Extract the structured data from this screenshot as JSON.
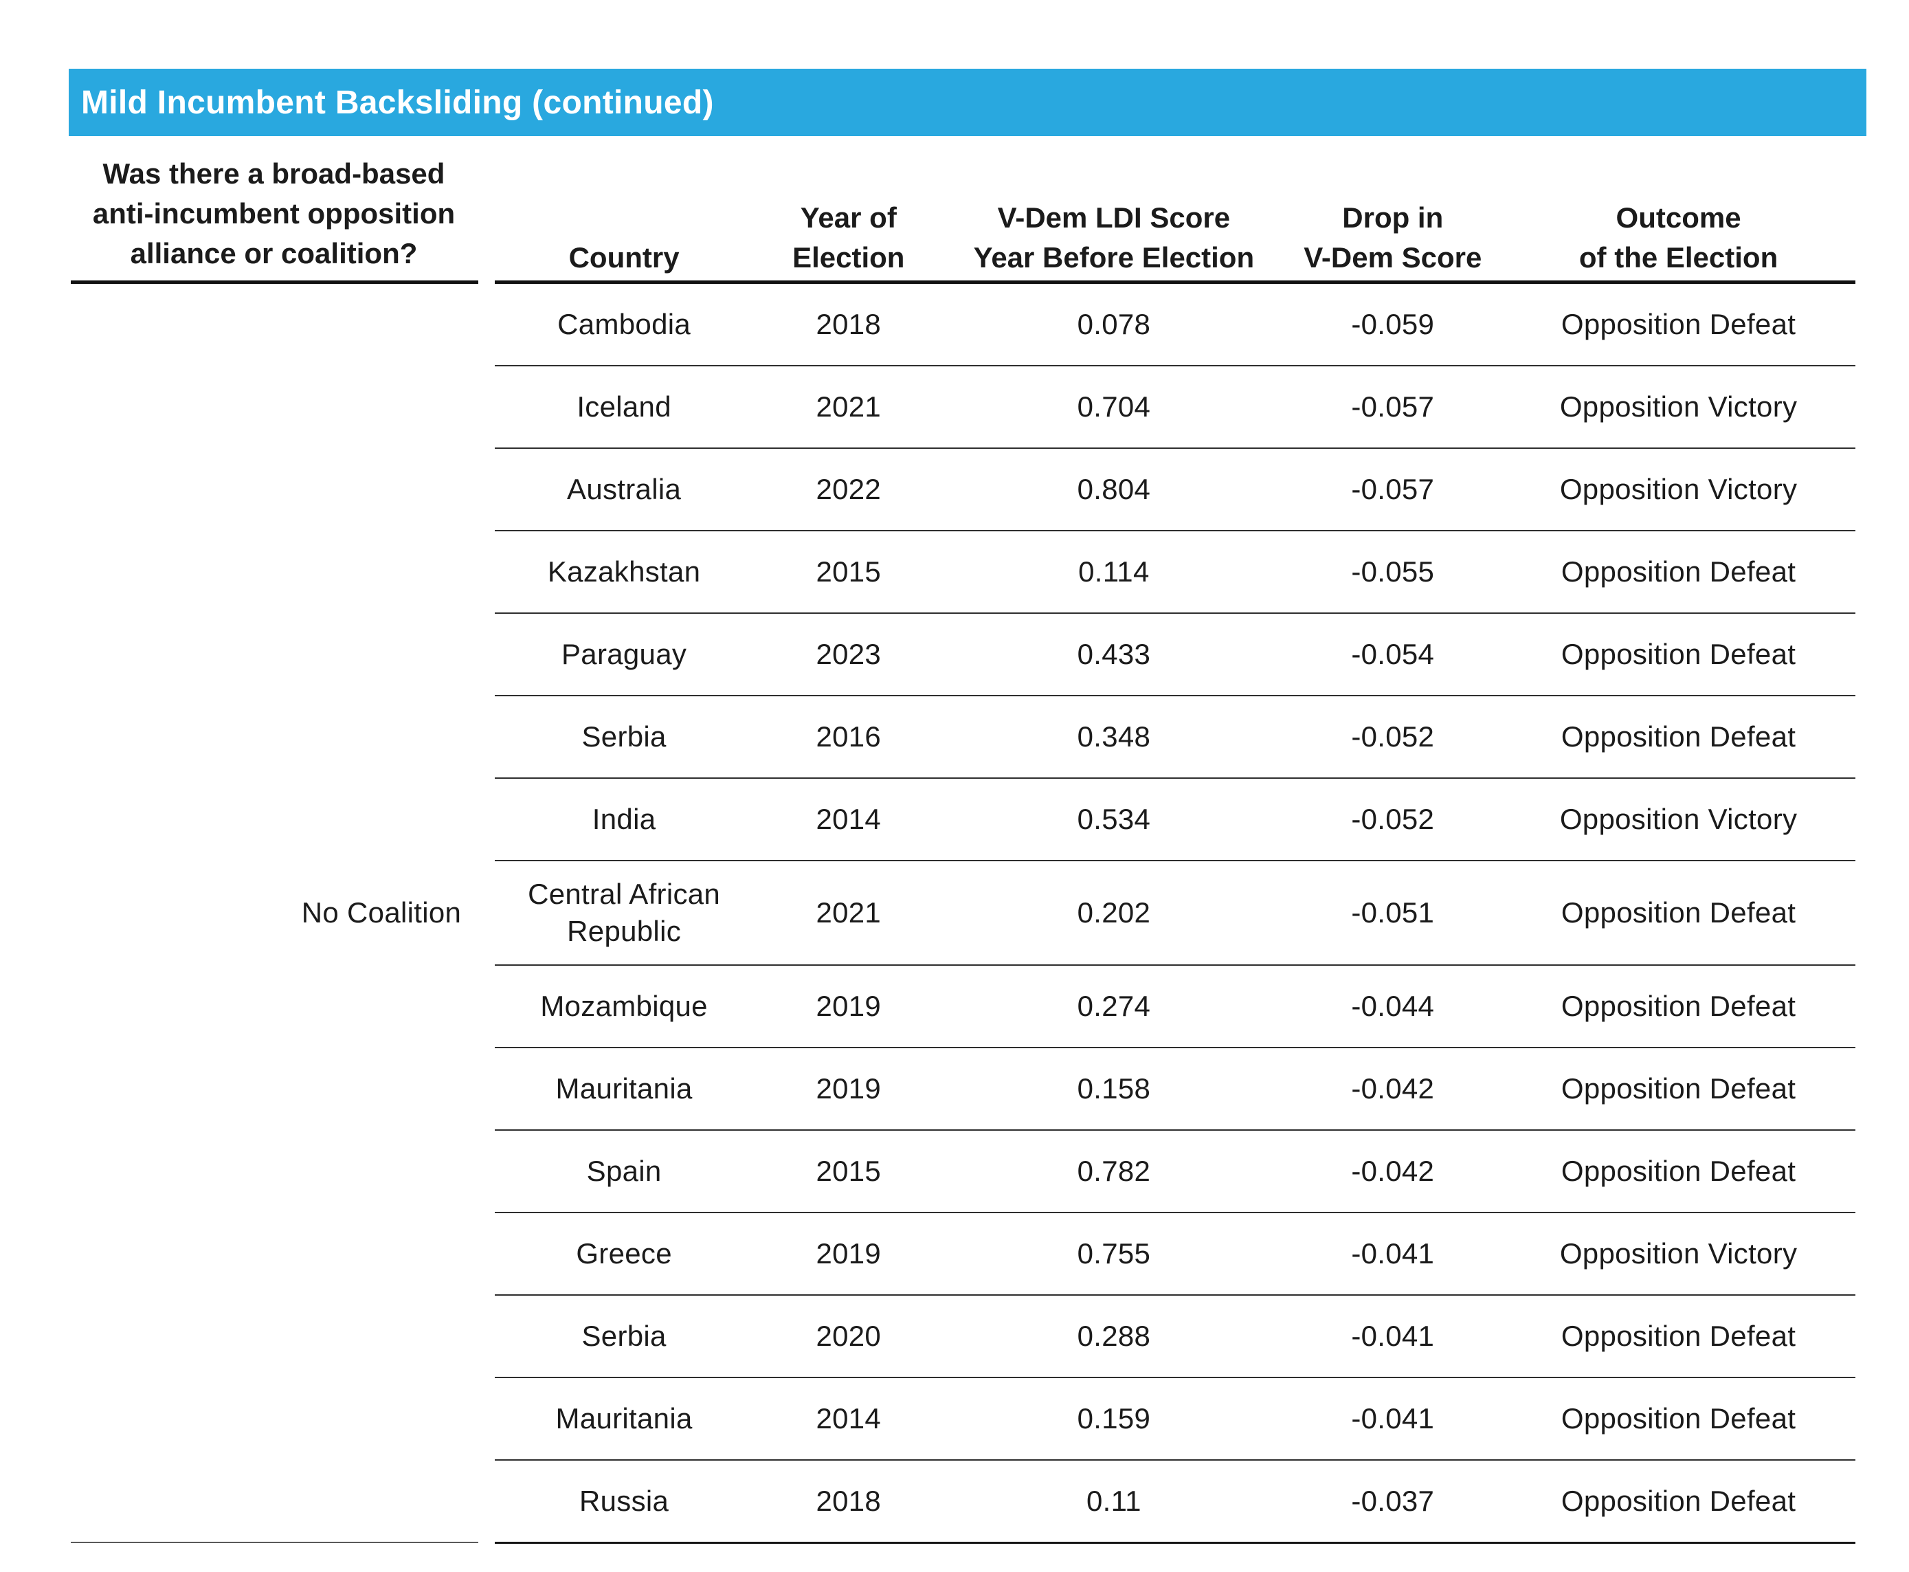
{
  "title_bar": {
    "label": "Mild Incumbent Backsliding (continued)"
  },
  "colors": {
    "header_bar_blue": "#29A8DF",
    "text": "#1B1B1B"
  },
  "left_column": {
    "header": "Was there a broad-based\nanti-incumbent opposition\nalliance or coalition?",
    "group_label": "No Coalition"
  },
  "table": {
    "headers": {
      "country": "Country",
      "year_of_election": "Year of\nElection",
      "vdem_ldi_score": "V-Dem LDI Score\nYear Before Election",
      "drop_in_vdem_score": "Drop in\nV-Dem Score",
      "outcome": "Outcome\nof the Election"
    },
    "rows": [
      {
        "country": "Cambodia",
        "year": "2018",
        "ldi": "0.078",
        "drop": "-0.059",
        "outcome": "Opposition Defeat"
      },
      {
        "country": "Iceland",
        "year": "2021",
        "ldi": "0.704",
        "drop": "-0.057",
        "outcome": "Opposition Victory"
      },
      {
        "country": "Australia",
        "year": "2022",
        "ldi": "0.804",
        "drop": "-0.057",
        "outcome": "Opposition Victory"
      },
      {
        "country": "Kazakhstan",
        "year": "2015",
        "ldi": "0.114",
        "drop": "-0.055",
        "outcome": "Opposition Defeat"
      },
      {
        "country": "Paraguay",
        "year": "2023",
        "ldi": "0.433",
        "drop": "-0.054",
        "outcome": "Opposition Defeat"
      },
      {
        "country": "Serbia",
        "year": "2016",
        "ldi": "0.348",
        "drop": "-0.052",
        "outcome": "Opposition Defeat"
      },
      {
        "country": "India",
        "year": "2014",
        "ldi": "0.534",
        "drop": "-0.052",
        "outcome": "Opposition Victory"
      },
      {
        "country": "Central African Republic",
        "year": "2021",
        "ldi": "0.202",
        "drop": "-0.051",
        "outcome": "Opposition Defeat"
      },
      {
        "country": "Mozambique",
        "year": "2019",
        "ldi": "0.274",
        "drop": "-0.044",
        "outcome": "Opposition Defeat"
      },
      {
        "country": "Mauritania",
        "year": "2019",
        "ldi": "0.158",
        "drop": "-0.042",
        "outcome": "Opposition Defeat"
      },
      {
        "country": "Spain",
        "year": "2015",
        "ldi": "0.782",
        "drop": "-0.042",
        "outcome": "Opposition Defeat"
      },
      {
        "country": "Greece",
        "year": "2019",
        "ldi": "0.755",
        "drop": "-0.041",
        "outcome": "Opposition Victory"
      },
      {
        "country": "Serbia",
        "year": "2020",
        "ldi": "0.288",
        "drop": "-0.041",
        "outcome": "Opposition Defeat"
      },
      {
        "country": "Mauritania",
        "year": "2014",
        "ldi": "0.159",
        "drop": "-0.041",
        "outcome": "Opposition Defeat"
      },
      {
        "country": "Russia",
        "year": "2018",
        "ldi": "0.11",
        "drop": "-0.037",
        "outcome": "Opposition Defeat"
      }
    ]
  }
}
